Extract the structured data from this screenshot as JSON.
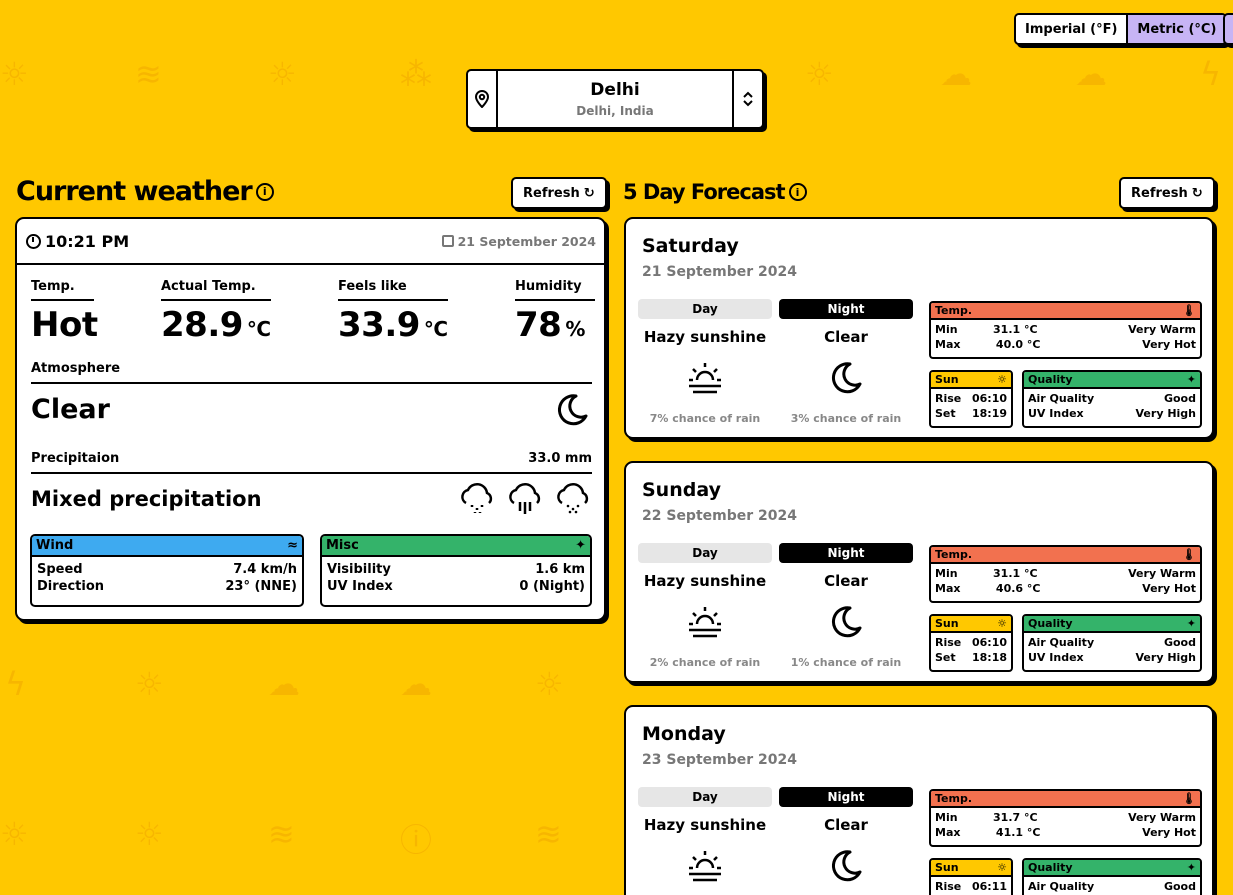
{
  "units": {
    "imperial_label": "Imperial (°F)",
    "metric_label": "Metric (°C)",
    "active": "metric"
  },
  "location": {
    "city": "Delhi",
    "region": "Delhi, India"
  },
  "current": {
    "title": "Current weather",
    "refresh_label": "Refresh",
    "time": "10:21 PM",
    "date": "21 September 2024",
    "temp_label": "Temp.",
    "temp_value": "Hot",
    "actual_label": "Actual Temp.",
    "actual_value": "28.9",
    "actual_unit": "°C",
    "feels_label": "Feels like",
    "feels_value": "33.9",
    "feels_unit": "°C",
    "humidity_label": "Humidity",
    "humidity_value": "78",
    "humidity_unit": "%",
    "atmosphere_label": "Atmosphere",
    "atmosphere_value": "Clear",
    "precip_label": "Precipitaion",
    "precip_amount": "33.0 mm",
    "precip_value": "Mixed precipitation",
    "wind": {
      "title": "Wind",
      "speed_label": "Speed",
      "speed_value": "7.4 km/h",
      "direction_label": "Direction",
      "direction_value": "23° (NNE)",
      "color": "#3eaaf0"
    },
    "misc": {
      "title": "Misc",
      "visibility_label": "Visibility",
      "visibility_value": "1.6 km",
      "uv_label": "UV Index",
      "uv_value": "0 (Night)",
      "color": "#34b36a"
    }
  },
  "forecast": {
    "title": "5 Day Forecast",
    "refresh_label": "Refresh",
    "labels": {
      "day": "Day",
      "night": "Night",
      "temp": "Temp.",
      "min": "Min",
      "max": "Max",
      "sun": "Sun",
      "rise": "Rise",
      "set": "Set",
      "quality": "Quality",
      "air": "Air Quality",
      "uv": "UV Index"
    },
    "colors": {
      "temp": "#f2714f",
      "sun": "#ffc800",
      "quality": "#34b36a"
    },
    "days": [
      {
        "name": "Saturday",
        "date": "21 September 2024",
        "day_desc": "Hazy sunshine",
        "night_desc": "Clear",
        "day_rain": "7% chance of rain",
        "night_rain": "3% chance of rain",
        "min": "31.1 °C",
        "min_desc": "Very Warm",
        "max": "40.0 °C",
        "max_desc": "Very Hot",
        "rise": "06:10",
        "set": "18:19",
        "air": "Good",
        "uv": "Very High"
      },
      {
        "name": "Sunday",
        "date": "22 September 2024",
        "day_desc": "Hazy sunshine",
        "night_desc": "Clear",
        "day_rain": "2% chance of rain",
        "night_rain": "1% chance of rain",
        "min": "31.1 °C",
        "min_desc": "Very Warm",
        "max": "40.6 °C",
        "max_desc": "Very Hot",
        "rise": "06:10",
        "set": "18:18",
        "air": "Good",
        "uv": "Very High"
      },
      {
        "name": "Monday",
        "date": "23 September 2024",
        "day_desc": "Hazy sunshine",
        "night_desc": "Clear",
        "day_rain": "",
        "night_rain": "",
        "min": "31.7 °C",
        "min_desc": "Very Warm",
        "max": "41.1 °C",
        "max_desc": "Very Hot",
        "rise": "06:11",
        "set": "",
        "air": "Good",
        "uv": ""
      }
    ]
  }
}
